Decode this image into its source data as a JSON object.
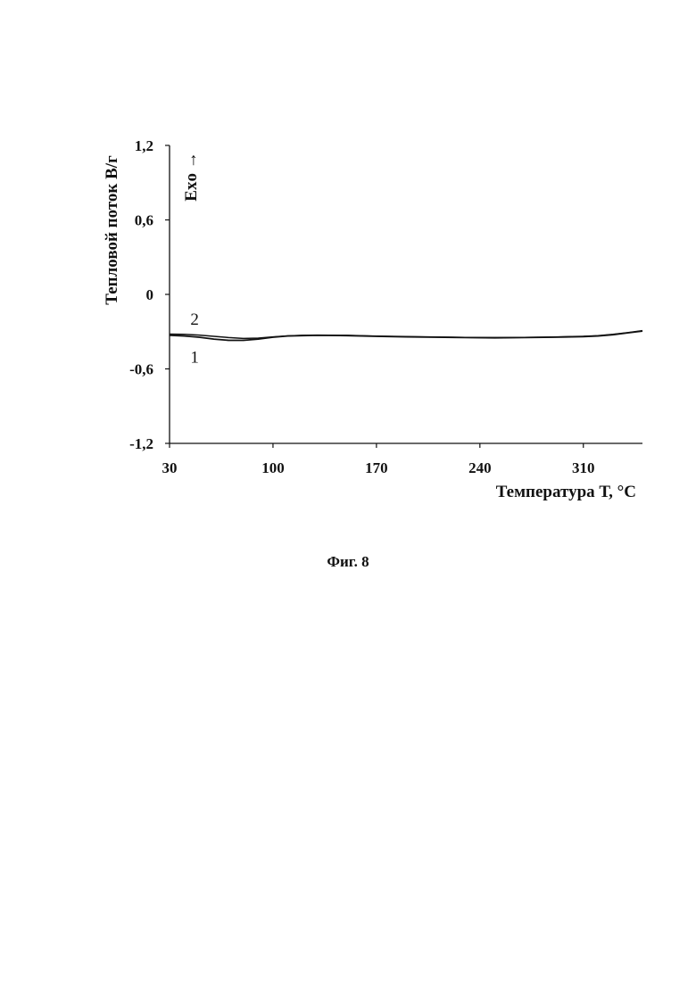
{
  "chart_data": {
    "type": "line",
    "xlabel": "Температура Т, °С",
    "ylabel": "Тепловой поток В/г",
    "annotation": "Exo →",
    "xlim": [
      30,
      350
    ],
    "ylim": [
      -1.2,
      1.2
    ],
    "x_ticks": [
      "30",
      "100",
      "170",
      "240",
      "310"
    ],
    "y_ticks": [
      "1,2",
      "0,6",
      "0",
      "-0,6",
      "-1,2"
    ],
    "grid": false,
    "series": [
      {
        "name": "1",
        "x": [
          30,
          40,
          50,
          60,
          70,
          80,
          90,
          100,
          110,
          120,
          130,
          150,
          170,
          190,
          210,
          230,
          250,
          270,
          290,
          310,
          320,
          330,
          340,
          350
        ],
        "y": [
          -0.33,
          -0.335,
          -0.345,
          -0.36,
          -0.37,
          -0.37,
          -0.36,
          -0.345,
          -0.335,
          -0.332,
          -0.33,
          -0.332,
          -0.338,
          -0.342,
          -0.345,
          -0.348,
          -0.35,
          -0.348,
          -0.345,
          -0.34,
          -0.335,
          -0.325,
          -0.31,
          -0.295
        ]
      },
      {
        "name": "2",
        "x": [
          30,
          40,
          50,
          60,
          70,
          80,
          90,
          100,
          110,
          120,
          130,
          150,
          170,
          190,
          210,
          230,
          250,
          270,
          290,
          310,
          320,
          330,
          340,
          350
        ],
        "y": [
          -0.32,
          -0.322,
          -0.328,
          -0.338,
          -0.348,
          -0.355,
          -0.352,
          -0.342,
          -0.334,
          -0.33,
          -0.328,
          -0.33,
          -0.336,
          -0.34,
          -0.343,
          -0.346,
          -0.348,
          -0.346,
          -0.343,
          -0.338,
          -0.332,
          -0.322,
          -0.308,
          -0.292
        ]
      }
    ],
    "caption": "Фиг. 8"
  }
}
